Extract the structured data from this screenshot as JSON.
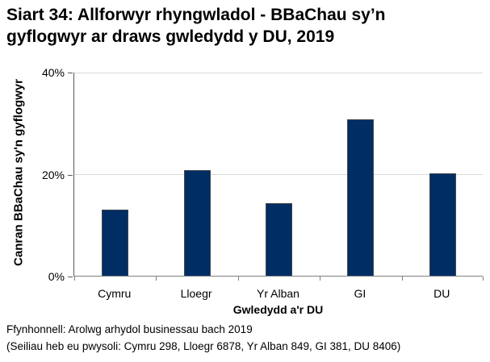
{
  "page": {
    "title_lines": [
      "Siart 34: Allforwyr rhyngwladol - BBaChau sy’n",
      "gyflogwyr ar draws gwledydd y DU, 2019"
    ],
    "footer_lines": [
      "Ffynhonnell: Arolwg arhydol businessau bach 2019",
      "(Seiliau heb eu pwysoli: Cymru 298, Lloegr 6878, Yr Alban 849, GI 381, DU 8406)"
    ]
  },
  "chart_data": {
    "type": "bar",
    "title": "Siart 34: Allforwyr rhyngwladol - BBaChau sy’n gyflogwyr ar draws gwledydd y DU, 2019",
    "categories": [
      "Cymru",
      "Lloegr",
      "Yr Alban",
      "GI",
      "DU"
    ],
    "values": [
      13,
      20.7,
      14.3,
      30.7,
      20.1
    ],
    "xlabel": "Gwledydd a'r DU",
    "ylabel": "Canran BBaChau sy'n gyflogwyr",
    "ylim": [
      0,
      40
    ],
    "yticks": [
      0,
      20,
      40
    ],
    "ytick_labels": [
      "0%",
      "20%",
      "40%"
    ],
    "grid": true,
    "legend": "none",
    "bar_color": "#002d64",
    "gridline_color": "#d9d9d9",
    "axis_color": "#808080",
    "text_color": "#000000"
  }
}
